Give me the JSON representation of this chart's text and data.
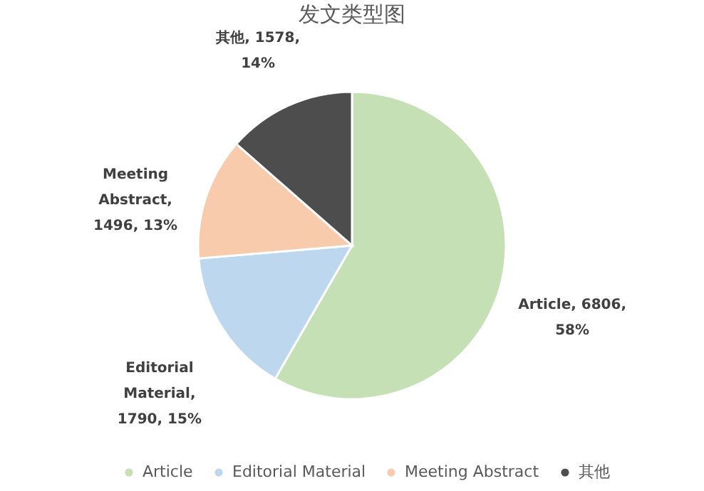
{
  "chart_data": {
    "type": "pie",
    "title": "发文类型图",
    "categories": [
      "Article",
      "Editorial Material",
      "Meeting Abstract",
      "其他"
    ],
    "values": [
      6806,
      1790,
      1496,
      1578
    ],
    "colors": [
      "#c5e0b4",
      "#bdd7ee",
      "#f8cbad",
      "#4d4d4d"
    ],
    "value_labels": [
      "Article, 6806, 58%",
      "Editorial Material, 1790, 15%",
      "Meeting Abstract, 1496, 13%",
      "其他, 1578, 14%"
    ],
    "legend": "bottom"
  }
}
